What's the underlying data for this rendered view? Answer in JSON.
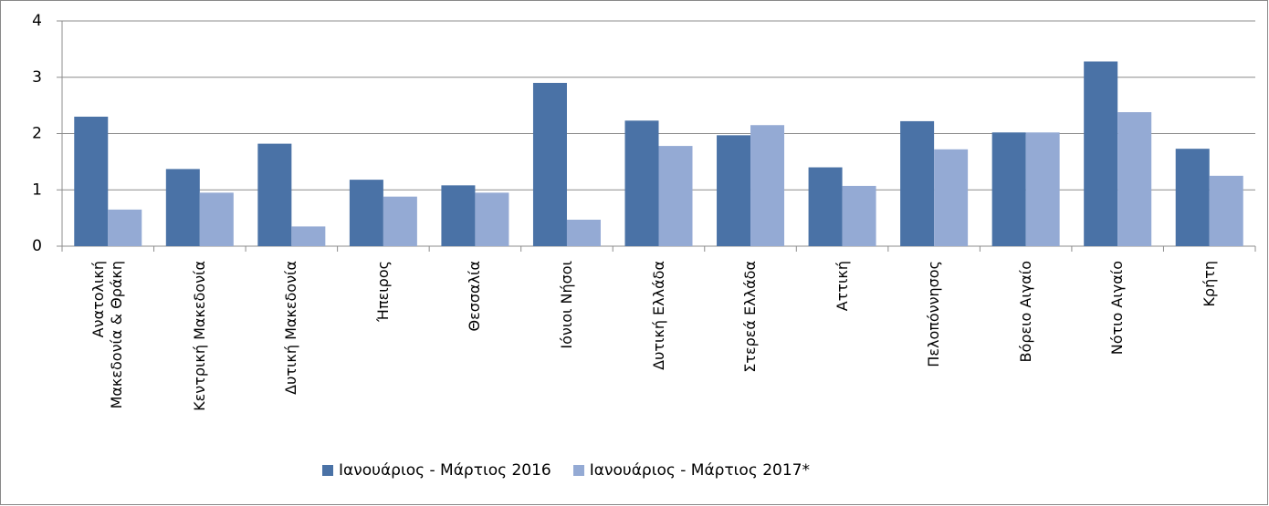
{
  "chart_data": {
    "type": "bar",
    "categories": [
      "Ανατολική Μακεδονία & Θράκη",
      "Κεντρική Μακεδονία",
      "Δυτική Μακεδονία",
      "Ήπειρος",
      "Θεσσαλία",
      "Ιόνιοι Νήσοι",
      "Δυτική Ελλάδα",
      "Στερεά Ελλάδα",
      "Αττική",
      "Πελοπόννησος",
      "Βόρειο Αιγαίο",
      "Νότιο Αιγαίο",
      "Κρήτη"
    ],
    "series": [
      {
        "name": "Ιανουάριος - Μάρτιος 2016",
        "color": "#4a72a6",
        "values": [
          2.3,
          1.37,
          1.82,
          1.18,
          1.08,
          2.9,
          2.23,
          1.97,
          1.4,
          2.22,
          2.02,
          3.28,
          1.73
        ]
      },
      {
        "name": "Ιανουάριος - Μάρτιος 2017*",
        "color": "#94aad4",
        "values": [
          0.65,
          0.95,
          0.35,
          0.88,
          0.95,
          0.47,
          1.78,
          2.15,
          1.07,
          1.72,
          2.02,
          2.38,
          1.25
        ]
      }
    ],
    "ylim": [
      0,
      4
    ],
    "yticks": [
      0,
      1,
      2,
      3,
      4
    ],
    "grid": true,
    "legend": "bottom"
  }
}
